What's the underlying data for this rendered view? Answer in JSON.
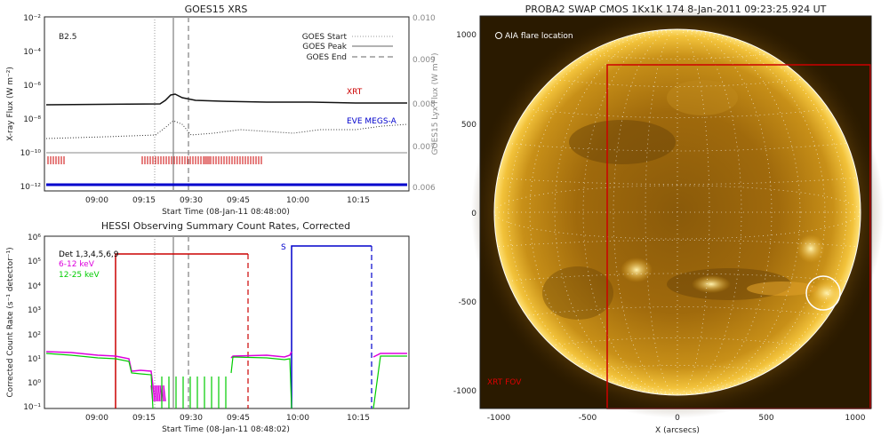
{
  "chart_data": [
    {
      "type": "line",
      "title": "GOES15 XRS",
      "xlabel": "Start Time (08-Jan-11 08:48:00)",
      "ylabel": "X-ray Flux (W m⁻²)",
      "y2label": "GOES15 Lyx Flux (W m⁻²)",
      "x_ticks": [
        "09:00",
        "09:15",
        "09:30",
        "09:45",
        "10:00",
        "10:15"
      ],
      "y_ticks": [
        "10⁻¹²",
        "10⁻¹⁰",
        "10⁻⁸",
        "10⁻⁶",
        "10⁻⁴",
        "10⁻²"
      ],
      "y2_ticks": [
        "0.006",
        "0.007",
        "0.008",
        "0.009",
        "0.010"
      ],
      "class_label": "B2.5",
      "legend": [
        "GOES Start",
        "GOES Peak",
        "GOES End"
      ],
      "series": [
        {
          "name": "XRT",
          "color": "#cc0000"
        },
        {
          "name": "EVE MEGS-A",
          "color": "#0000cc"
        }
      ],
      "event_times_min": {
        "start": 27,
        "peak": 35,
        "end": 40
      },
      "x_range_min": [
        0,
        96
      ]
    },
    {
      "type": "line",
      "title": "HESSI Observing Summary Count Rates, Corrected",
      "xlabel": "Start Time (08-Jan-11 08:48:02)",
      "ylabel": "Corrected Count Rate (s⁻¹ detector⁻¹)",
      "x_ticks": [
        "09:00",
        "09:15",
        "09:30",
        "09:45",
        "10:00",
        "10:15"
      ],
      "y_ticks": [
        "10⁻¹",
        "10⁰",
        "10¹",
        "10²",
        "10³",
        "10⁴",
        "10⁵",
        "10⁶"
      ],
      "legend": [
        {
          "name": "Det 1,3,4,5,6,9",
          "color": "#000000"
        },
        {
          "name": "6-12 keV",
          "color": "#dd00dd"
        },
        {
          "name": "12-25 keV",
          "color": "#00cc00"
        }
      ],
      "marker_label": "S"
    },
    {
      "type": "image",
      "title": "PROBA2 SWAP CMOS 1Kx1K 174  8-Jan-2011 09:23:25.924 UT",
      "xlabel": "X (arcsecs)",
      "x_ticks": [
        "-1000",
        "-500",
        "0",
        "500",
        "1000"
      ],
      "y_ticks": [
        "-1000",
        "-500",
        "0",
        "500",
        "1000"
      ],
      "annotations": {
        "flare": "AIA flare location",
        "fov": "XRT FOV"
      },
      "fov_color": "#cc0000"
    }
  ]
}
